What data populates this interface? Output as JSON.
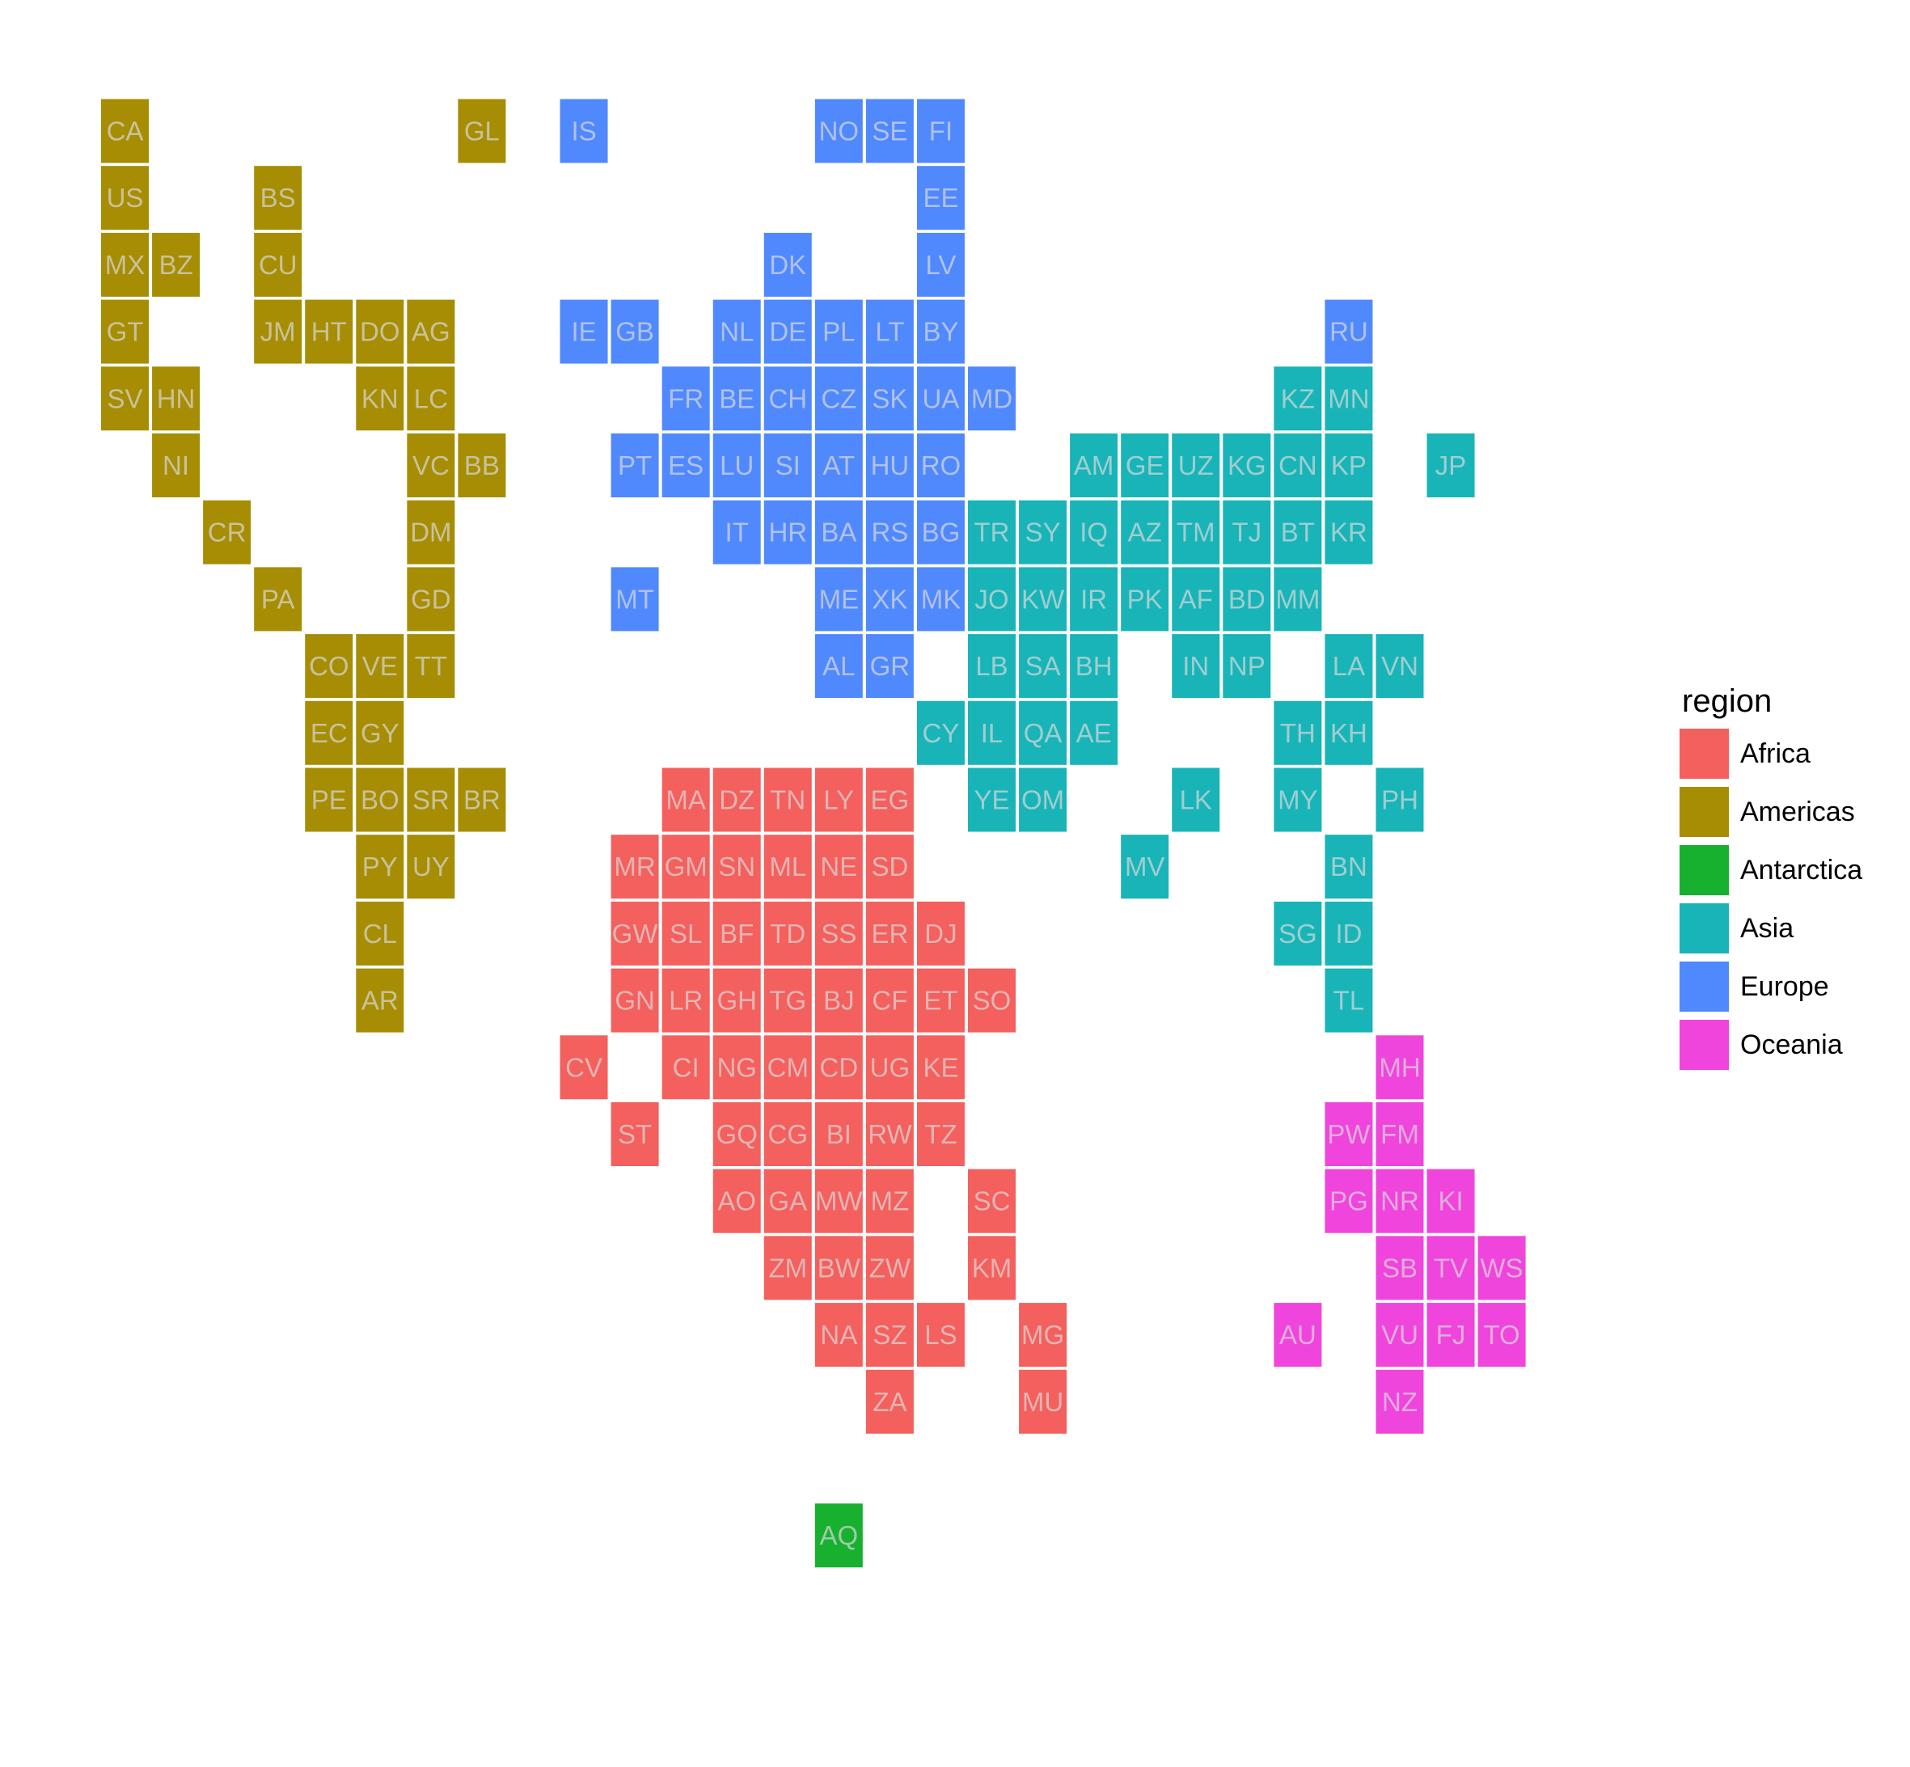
{
  "chart_data": {
    "type": "heatmap",
    "title": "",
    "xlabel": "",
    "ylabel": "",
    "legend": {
      "title": "region",
      "placement": "right"
    },
    "grid": false,
    "colors": {
      "Africa": "#F3605D",
      "Americas": "#A68D04",
      "Antarctica": "#17B02F",
      "Asia": "#18B4B8",
      "Europe": "#5089FD",
      "Oceania": "#EF45DC"
    },
    "regions": [
      "Africa",
      "Americas",
      "Antarctica",
      "Asia",
      "Europe",
      "Oceania"
    ],
    "tiles": {
      "Americas": [
        [
          "CA",
          0,
          0
        ],
        [
          "GL",
          7,
          0
        ],
        [
          "US",
          0,
          1
        ],
        [
          "BS",
          3,
          1
        ],
        [
          "MX",
          0,
          2
        ],
        [
          "BZ",
          1,
          2
        ],
        [
          "CU",
          3,
          2
        ],
        [
          "GT",
          0,
          3
        ],
        [
          "JM",
          3,
          3
        ],
        [
          "HT",
          4,
          3
        ],
        [
          "DO",
          5,
          3
        ],
        [
          "AG",
          6,
          3
        ],
        [
          "SV",
          0,
          4
        ],
        [
          "HN",
          1,
          4
        ],
        [
          "KN",
          5,
          4
        ],
        [
          "LC",
          6,
          4
        ],
        [
          "NI",
          1,
          5
        ],
        [
          "VC",
          6,
          5
        ],
        [
          "BB",
          7,
          5
        ],
        [
          "CR",
          2,
          6
        ],
        [
          "DM",
          6,
          6
        ],
        [
          "PA",
          3,
          7
        ],
        [
          "GD",
          6,
          7
        ],
        [
          "CO",
          4,
          8
        ],
        [
          "VE",
          5,
          8
        ],
        [
          "TT",
          6,
          8
        ],
        [
          "EC",
          4,
          9
        ],
        [
          "GY",
          5,
          9
        ],
        [
          "PE",
          4,
          10
        ],
        [
          "BO",
          5,
          10
        ],
        [
          "SR",
          6,
          10
        ],
        [
          "BR",
          7,
          10
        ],
        [
          "PY",
          5,
          11
        ],
        [
          "UY",
          6,
          11
        ],
        [
          "CL",
          5,
          12
        ],
        [
          "AR",
          5,
          13
        ]
      ],
      "Europe": [
        [
          "IS",
          9,
          0
        ],
        [
          "NO",
          14,
          0
        ],
        [
          "SE",
          15,
          0
        ],
        [
          "FI",
          16,
          0
        ],
        [
          "EE",
          16,
          1
        ],
        [
          "DK",
          13,
          2
        ],
        [
          "LV",
          16,
          2
        ],
        [
          "IE",
          9,
          3
        ],
        [
          "GB",
          10,
          3
        ],
        [
          "NL",
          12,
          3
        ],
        [
          "DE",
          13,
          3
        ],
        [
          "PL",
          14,
          3
        ],
        [
          "LT",
          15,
          3
        ],
        [
          "BY",
          16,
          3
        ],
        [
          "RU",
          24,
          3
        ],
        [
          "FR",
          11,
          4
        ],
        [
          "BE",
          12,
          4
        ],
        [
          "CH",
          13,
          4
        ],
        [
          "CZ",
          14,
          4
        ],
        [
          "SK",
          15,
          4
        ],
        [
          "UA",
          16,
          4
        ],
        [
          "MD",
          17,
          4
        ],
        [
          "PT",
          10,
          5
        ],
        [
          "ES",
          11,
          5
        ],
        [
          "LU",
          12,
          5
        ],
        [
          "SI",
          13,
          5
        ],
        [
          "AT",
          14,
          5
        ],
        [
          "HU",
          15,
          5
        ],
        [
          "RO",
          16,
          5
        ],
        [
          "IT",
          12,
          6
        ],
        [
          "HR",
          13,
          6
        ],
        [
          "BA",
          14,
          6
        ],
        [
          "RS",
          15,
          6
        ],
        [
          "BG",
          16,
          6
        ],
        [
          "MT",
          10,
          7
        ],
        [
          "ME",
          14,
          7
        ],
        [
          "XK",
          15,
          7
        ],
        [
          "MK",
          16,
          7
        ],
        [
          "AL",
          14,
          8
        ],
        [
          "GR",
          15,
          8
        ]
      ],
      "Asia": [
        [
          "KZ",
          23,
          4
        ],
        [
          "MN",
          24,
          4
        ],
        [
          "AM",
          19,
          5
        ],
        [
          "GE",
          20,
          5
        ],
        [
          "UZ",
          21,
          5
        ],
        [
          "KG",
          22,
          5
        ],
        [
          "CN",
          23,
          5
        ],
        [
          "KP",
          24,
          5
        ],
        [
          "JP",
          26,
          5
        ],
        [
          "TR",
          17,
          6
        ],
        [
          "SY",
          18,
          6
        ],
        [
          "IQ",
          19,
          6
        ],
        [
          "AZ",
          20,
          6
        ],
        [
          "TM",
          21,
          6
        ],
        [
          "TJ",
          22,
          6
        ],
        [
          "BT",
          23,
          6
        ],
        [
          "KR",
          24,
          6
        ],
        [
          "JO",
          17,
          7
        ],
        [
          "KW",
          18,
          7
        ],
        [
          "IR",
          19,
          7
        ],
        [
          "PK",
          20,
          7
        ],
        [
          "AF",
          21,
          7
        ],
        [
          "BD",
          22,
          7
        ],
        [
          "MM",
          23,
          7
        ],
        [
          "LB",
          17,
          8
        ],
        [
          "SA",
          18,
          8
        ],
        [
          "BH",
          19,
          8
        ],
        [
          "IN",
          21,
          8
        ],
        [
          "NP",
          22,
          8
        ],
        [
          "LA",
          24,
          8
        ],
        [
          "VN",
          25,
          8
        ],
        [
          "CY",
          16,
          9
        ],
        [
          "IL",
          17,
          9
        ],
        [
          "QA",
          18,
          9
        ],
        [
          "AE",
          19,
          9
        ],
        [
          "TH",
          23,
          9
        ],
        [
          "KH",
          24,
          9
        ],
        [
          "YE",
          17,
          10
        ],
        [
          "OM",
          18,
          10
        ],
        [
          "LK",
          21,
          10
        ],
        [
          "MY",
          23,
          10
        ],
        [
          "PH",
          25,
          10
        ],
        [
          "MV",
          20,
          11
        ],
        [
          "BN",
          24,
          11
        ],
        [
          "SG",
          23,
          12
        ],
        [
          "ID",
          24,
          12
        ],
        [
          "TL",
          24,
          13
        ]
      ],
      "Africa": [
        [
          "MA",
          11,
          10
        ],
        [
          "DZ",
          12,
          10
        ],
        [
          "TN",
          13,
          10
        ],
        [
          "LY",
          14,
          10
        ],
        [
          "EG",
          15,
          10
        ],
        [
          "MR",
          10,
          11
        ],
        [
          "GM",
          11,
          11
        ],
        [
          "SN",
          12,
          11
        ],
        [
          "ML",
          13,
          11
        ],
        [
          "NE",
          14,
          11
        ],
        [
          "SD",
          15,
          11
        ],
        [
          "GW",
          10,
          12
        ],
        [
          "SL",
          11,
          12
        ],
        [
          "BF",
          12,
          12
        ],
        [
          "TD",
          13,
          12
        ],
        [
          "SS",
          14,
          12
        ],
        [
          "ER",
          15,
          12
        ],
        [
          "DJ",
          16,
          12
        ],
        [
          "GN",
          10,
          13
        ],
        [
          "LR",
          11,
          13
        ],
        [
          "GH",
          12,
          13
        ],
        [
          "TG",
          13,
          13
        ],
        [
          "BJ",
          14,
          13
        ],
        [
          "CF",
          15,
          13
        ],
        [
          "ET",
          16,
          13
        ],
        [
          "SO",
          17,
          13
        ],
        [
          "CV",
          9,
          14
        ],
        [
          "CI",
          11,
          14
        ],
        [
          "NG",
          12,
          14
        ],
        [
          "CM",
          13,
          14
        ],
        [
          "CD",
          14,
          14
        ],
        [
          "UG",
          15,
          14
        ],
        [
          "KE",
          16,
          14
        ],
        [
          "ST",
          10,
          15
        ],
        [
          "GQ",
          12,
          15
        ],
        [
          "CG",
          13,
          15
        ],
        [
          "BI",
          14,
          15
        ],
        [
          "RW",
          15,
          15
        ],
        [
          "TZ",
          16,
          15
        ],
        [
          "AO",
          12,
          16
        ],
        [
          "GA",
          13,
          16
        ],
        [
          "MW",
          14,
          16
        ],
        [
          "MZ",
          15,
          16
        ],
        [
          "SC",
          17,
          16
        ],
        [
          "ZM",
          13,
          17
        ],
        [
          "BW",
          14,
          17
        ],
        [
          "ZW",
          15,
          17
        ],
        [
          "KM",
          17,
          17
        ],
        [
          "NA",
          14,
          18
        ],
        [
          "SZ",
          15,
          18
        ],
        [
          "LS",
          16,
          18
        ],
        [
          "MG",
          18,
          18
        ],
        [
          "ZA",
          15,
          19
        ],
        [
          "MU",
          18,
          19
        ]
      ],
      "Oceania": [
        [
          "MH",
          25,
          14
        ],
        [
          "PW",
          24,
          15
        ],
        [
          "FM",
          25,
          15
        ],
        [
          "PG",
          24,
          16
        ],
        [
          "NR",
          25,
          16
        ],
        [
          "KI",
          26,
          16
        ],
        [
          "SB",
          25,
          17
        ],
        [
          "TV",
          26,
          17
        ],
        [
          "WS",
          27,
          17
        ],
        [
          "AU",
          23,
          18
        ],
        [
          "VU",
          25,
          18
        ],
        [
          "FJ",
          26,
          18
        ],
        [
          "TO",
          27,
          18
        ],
        [
          "NZ",
          25,
          19
        ]
      ],
      "Antarctica": [
        [
          "AQ",
          14,
          21
        ]
      ]
    }
  }
}
